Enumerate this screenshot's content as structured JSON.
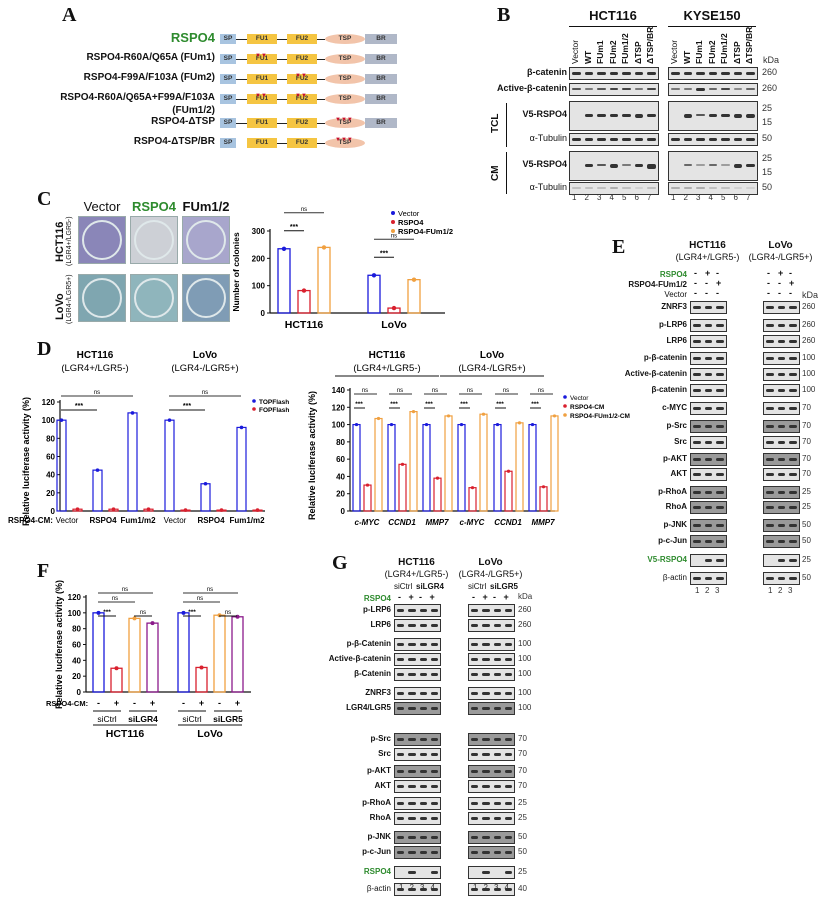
{
  "panels": {
    "A": {
      "label": "A",
      "constructs": [
        {
          "name": "RSPO4",
          "green": true,
          "domains": [
            "SP",
            "FU1",
            "FU2",
            "TSP",
            "BR"
          ],
          "mut": {}
        },
        {
          "name": "RSPO4-R60A/Q65A (FUm1)",
          "domains": [
            "SP",
            "FU1",
            "FU2",
            "TSP",
            "BR"
          ],
          "mut": {
            "FU1": "▼▼"
          }
        },
        {
          "name": "RSPO4-F99A/F103A (FUm2)",
          "domains": [
            "SP",
            "FU1",
            "FU2",
            "TSP",
            "BR"
          ],
          "mut": {
            "FU2": "▼▼"
          }
        },
        {
          "name": "RSPO4-R60A/Q65A+F99A/F103A",
          "name2": "(FUm1/2)",
          "domains": [
            "SP",
            "FU1",
            "FU2",
            "TSP",
            "BR"
          ],
          "mut": {
            "FU1": "▼▼",
            "FU2": "▼▼"
          }
        },
        {
          "name": "RSPO4-ΔTSP",
          "domains": [
            "SP",
            "FU1",
            "FU2",
            "TSP",
            "BR"
          ],
          "mut": {
            "TSP": "▼▼▼"
          }
        },
        {
          "name": "RSPO4-ΔTSP/BR",
          "domains": [
            "SP",
            "FU1",
            "FU2",
            "TSP"
          ],
          "mut": {
            "TSP": "▼▼▼"
          }
        }
      ],
      "domain_labels": {
        "sp": "SP",
        "fu1": "FU1",
        "fu2": "FU2",
        "tsp": "TSP",
        "br": "BR"
      }
    },
    "B": {
      "label": "B",
      "cell_lines": [
        "HCT116",
        "KYSE150"
      ],
      "lanes": [
        "Vector",
        "WT",
        "FUm1",
        "FUm2",
        "FUm1/2",
        "ΔTSP",
        "ΔTSP/BR"
      ],
      "lane_numbers": [
        "1",
        "2",
        "3",
        "4",
        "5",
        "6",
        "7"
      ],
      "kda_label": "kDa",
      "rows": [
        {
          "name": "β-catenin",
          "kda": "260"
        },
        {
          "name": "Active-β-catenin",
          "kda": "260"
        },
        {
          "name": "V5-RSPO4",
          "kda": "25",
          "kda2": "15",
          "group": "TCL"
        },
        {
          "name": "α-Tubulin",
          "kda": "50",
          "group": "TCL"
        },
        {
          "name": "V5-RSPO4",
          "kda": "25",
          "kda2": "15",
          "group": "CM"
        },
        {
          "name": "α-Tubulin",
          "kda": "50",
          "group": "CM"
        }
      ],
      "groups": [
        "TCL",
        "CM"
      ]
    },
    "C": {
      "label": "C",
      "plate_columns": [
        "Vector",
        "RSPO4",
        "FUm1/2"
      ],
      "plate_rows": [
        {
          "name": "HCT116",
          "sub": "(LGR4+/LGR5-)"
        },
        {
          "name": "LoVo",
          "sub": "(LGR4-/LGR5+)"
        }
      ]
    },
    "D": {
      "label": "D",
      "xprefix": "RSPO4-CM:"
    },
    "E": {
      "label": "E",
      "cell_lines": [
        {
          "name": "HCT116",
          "sub": "(LGR4+/LGR5-)"
        },
        {
          "name": "LoVo",
          "sub": "(LGR4-/LGR5+)"
        }
      ],
      "conditions": [
        {
          "name": "RSPO4",
          "green": true,
          "signs": [
            "-",
            "+",
            "-"
          ]
        },
        {
          "name": "RSPO4-FUm1/2",
          "signs": [
            "-",
            "-",
            "+"
          ]
        },
        {
          "name": "Vector",
          "signs": [
            "-",
            "-",
            "-"
          ]
        }
      ],
      "kda_label": "kDa",
      "rows": [
        {
          "name": "ZNRF3",
          "kda": "260"
        },
        {
          "name": "p-LRP6",
          "kda": "260"
        },
        {
          "name": "LRP6",
          "kda": "260"
        },
        {
          "name": "p-β-catenin",
          "kda": "100"
        },
        {
          "name": "Active-β-catenin",
          "kda": "100"
        },
        {
          "name": "β-catenin",
          "kda": "100"
        },
        {
          "name": "c-MYC",
          "kda": "70"
        },
        {
          "name": "p-Src",
          "kda": "70"
        },
        {
          "name": "Src",
          "kda": "70"
        },
        {
          "name": "p-AKT",
          "kda": "70"
        },
        {
          "name": "AKT",
          "kda": "70"
        },
        {
          "name": "p-RhoA",
          "kda": "25"
        },
        {
          "name": "RhoA",
          "kda": "25"
        },
        {
          "name": "p-JNK",
          "kda": "50"
        },
        {
          "name": "p-c-Jun",
          "kda": "50"
        },
        {
          "name": "V5-RSPO4",
          "kda": "25",
          "green": true
        },
        {
          "name": "β-actin",
          "kda": "50"
        }
      ],
      "lane_numbers": [
        "1",
        "2",
        "3"
      ]
    },
    "F": {
      "label": "F",
      "xprefix": "RSPO4-CM:",
      "signs": [
        "-",
        "+",
        "-",
        "+",
        "-",
        "+",
        "-",
        "+"
      ],
      "groups": [
        {
          "si": [
            "siCtrl",
            "siLGR4"
          ],
          "cell": "HCT116"
        },
        {
          "si": [
            "siCtrl",
            "siLGR5"
          ],
          "cell": "LoVo"
        }
      ]
    },
    "G": {
      "label": "G",
      "cell_lines": [
        {
          "name": "HCT116",
          "sub": "(LGR4+/LGR5-)",
          "si": [
            "siCtrl",
            "siLGR4"
          ]
        },
        {
          "name": "LoVo",
          "sub": "(LGR4-/LGR5+)",
          "si": [
            "siCtrl",
            "siLGR5"
          ]
        }
      ],
      "treatment": {
        "name": "RSPO4",
        "signs": [
          "-",
          "+",
          "-",
          "+"
        ]
      },
      "kda_label": "kDa",
      "rows": [
        {
          "name": "p-LRP6",
          "kda": "260"
        },
        {
          "name": "LRP6",
          "kda": "260"
        },
        {
          "name": "p-β-Catenin",
          "kda": "100"
        },
        {
          "name": "Active-β-catenin",
          "kda": "100"
        },
        {
          "name": "β-Catenin",
          "kda": "100"
        },
        {
          "name": "ZNRF3",
          "kda": "100"
        },
        {
          "name": "LGR4/LGR5",
          "kda": "100"
        },
        {
          "name": "p-Src",
          "kda": "70"
        },
        {
          "name": "Src",
          "kda": "70"
        },
        {
          "name": "p-AKT",
          "kda": "70"
        },
        {
          "name": "AKT",
          "kda": "70"
        },
        {
          "name": "p-RhoA",
          "kda": "25"
        },
        {
          "name": "RhoA",
          "kda": "25"
        },
        {
          "name": "p-JNK",
          "kda": "50"
        },
        {
          "name": "p-c-Jun",
          "kda": "50"
        },
        {
          "name": "RSPO4",
          "kda": "25",
          "green": true
        },
        {
          "name": "β-actin",
          "kda": "40"
        }
      ],
      "lane_numbers": [
        "1",
        "2",
        "3",
        "4"
      ]
    }
  },
  "chart_data": [
    {
      "id": "C",
      "type": "bar",
      "title": "",
      "categories": [
        "HCT116",
        "LoVo"
      ],
      "series": [
        {
          "name": "Vector",
          "color": "#1a1adb",
          "values": [
            235,
            138
          ]
        },
        {
          "name": "RSPO4",
          "color": "#d9202e",
          "values": [
            82,
            18
          ]
        },
        {
          "name": "RSPO4-FUm1/2",
          "color": "#f0a040",
          "values": [
            240,
            122
          ]
        }
      ],
      "xlabel": "",
      "ylabel": "Number of colonies",
      "ylim": [
        0,
        300
      ],
      "yticks": [
        "0",
        "100",
        "200",
        "300"
      ],
      "annotations": [
        "***",
        "ns",
        "***",
        "ns"
      ]
    },
    {
      "id": "D-left",
      "type": "bar",
      "categories": [
        "Vector",
        "RSPO4",
        "Fum1/m2",
        "Vector",
        "RSPO4",
        "Fum1/m2"
      ],
      "group_titles": [
        {
          "name": "HCT116",
          "sub": "(LGR4+/LGR5-)"
        },
        {
          "name": "LoVo",
          "sub": "(LGR4-/LGR5+)"
        }
      ],
      "series": [
        {
          "name": "TOPFlash",
          "color": "#1a1adb",
          "values": [
            100,
            45,
            108,
            100,
            30,
            92
          ]
        },
        {
          "name": "FOPFlash",
          "color": "#d9202e",
          "values": [
            2,
            2,
            2,
            1,
            1,
            1
          ]
        }
      ],
      "xlabel": "RSPO4-CM:",
      "ylabel": "Relative luciferase activity (%)",
      "ylim": [
        0,
        120
      ],
      "yticks": [
        "0",
        "20",
        "40",
        "60",
        "80",
        "100",
        "120"
      ],
      "annotations": [
        "***",
        "ns",
        "***",
        "ns"
      ]
    },
    {
      "id": "D-right",
      "type": "bar",
      "categories": [
        "c-MYC",
        "CCND1",
        "MMP7",
        "c-MYC",
        "CCND1",
        "MMP7"
      ],
      "group_titles": [
        {
          "name": "HCT116",
          "sub": "(LGR4+/LGR5-)"
        },
        {
          "name": "LoVo",
          "sub": "(LGR4-/LGR5+)"
        }
      ],
      "series": [
        {
          "name": "Vector",
          "color": "#1a1adb",
          "values": [
            100,
            100,
            100,
            100,
            100,
            100
          ]
        },
        {
          "name": "RSPO4-CM",
          "color": "#d9202e",
          "values": [
            30,
            54,
            38,
            27,
            46,
            28
          ]
        },
        {
          "name": "RSPO4-FUm1/2-CM",
          "color": "#f0a040",
          "values": [
            107,
            115,
            110,
            112,
            102,
            110
          ]
        }
      ],
      "xlabel": "",
      "ylabel": "Relative luciferase activity (%)",
      "ylim": [
        0,
        140
      ],
      "yticks": [
        "0",
        "20",
        "40",
        "60",
        "80",
        "100",
        "120",
        "140"
      ],
      "annotations": [
        "***",
        "ns",
        "***",
        "ns",
        "***",
        "ns",
        "***",
        "ns",
        "***",
        "ns",
        "***",
        "ns"
      ]
    },
    {
      "id": "F",
      "type": "bar",
      "categories": [
        "siCtrl -",
        "siCtrl +",
        "siLGR4 -",
        "siLGR4 +",
        "siCtrl -",
        "siCtrl +",
        "siLGR5 -",
        "siLGR5 +"
      ],
      "colors": [
        "#1a1adb",
        "#d9202e",
        "#f0a040",
        "#8b1a8b",
        "#1a1adb",
        "#d9202e",
        "#f0a040",
        "#8b1a8b"
      ],
      "values": [
        100,
        30,
        93,
        87,
        100,
        31,
        97,
        95
      ],
      "xlabel": "RSPO4-CM:",
      "ylabel": "Relative luciferase activity (%)",
      "ylim": [
        0,
        120
      ],
      "yticks": [
        "0",
        "20",
        "40",
        "60",
        "80",
        "100",
        "120"
      ],
      "group_labels": [
        "HCT116",
        "LoVo"
      ],
      "annotations": [
        "***",
        "ns",
        "ns",
        "ns",
        "***",
        "ns",
        "ns",
        "ns"
      ]
    }
  ]
}
